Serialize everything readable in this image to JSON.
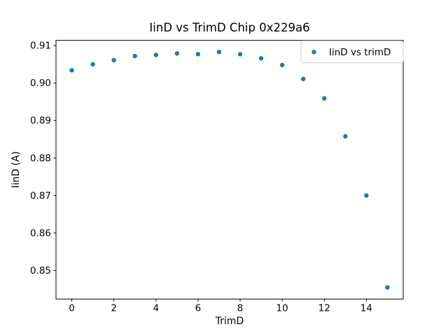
{
  "window": {
    "background": "#ffffff"
  },
  "chart_data": {
    "type": "scatter",
    "title": "IinD vs TrimD Chip 0x229a6",
    "xlabel": "TrimD",
    "ylabel": "IinD (A)",
    "legend": {
      "position": "upper right",
      "entries": [
        "IinD vs trimD"
      ]
    },
    "series": [
      {
        "name": "IinD vs trimD",
        "color": "#1f77b4",
        "x": [
          0,
          1,
          2,
          3,
          4,
          5,
          6,
          7,
          8,
          9,
          10,
          11,
          12,
          13,
          14,
          15
        ],
        "y": [
          0.9034,
          0.905,
          0.9061,
          0.9072,
          0.9075,
          0.9079,
          0.9077,
          0.9083,
          0.9077,
          0.9066,
          0.9048,
          0.9011,
          0.8959,
          0.8858,
          0.87,
          0.8455
        ]
      }
    ],
    "xlim": [
      -0.75,
      15.75
    ],
    "ylim": [
      0.8424,
      0.9114
    ],
    "xticks": [
      0,
      2,
      4,
      6,
      8,
      10,
      12,
      14
    ],
    "yticks": [
      0.85,
      0.86,
      0.87,
      0.88,
      0.89,
      0.9,
      0.91
    ],
    "grid": false,
    "axis_color": "#000000",
    "text_color": "#000000",
    "marker_size_px": 3.2
  }
}
